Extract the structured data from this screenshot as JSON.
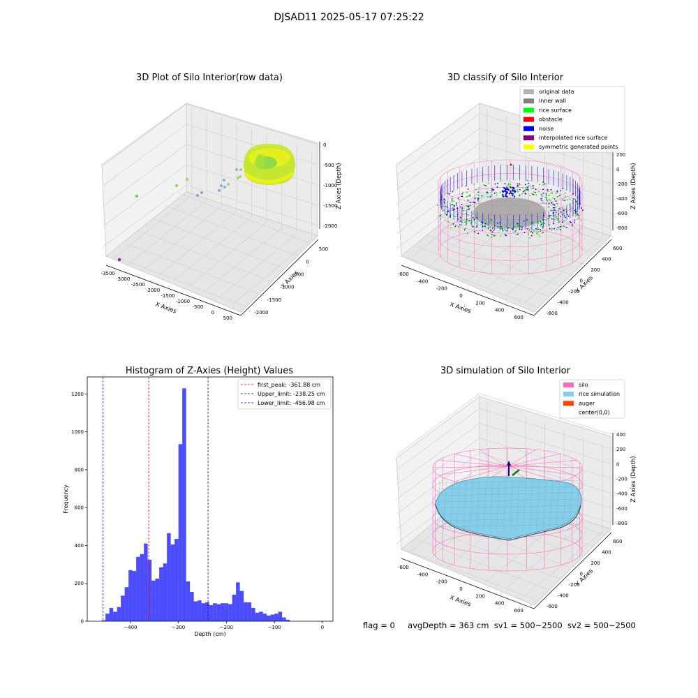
{
  "figure": {
    "suptitle": "DJSAD11 2025-05-17 07:25:22"
  },
  "panels": {
    "raw": {
      "title": "3D Plot of Silo Interior(row data)",
      "xlabel": "X Axies",
      "ylabel": "Y Axies",
      "zlabel": "Z Axies (Depth)",
      "xticks": [
        "-3500",
        "-3000",
        "-2500",
        "-2000",
        "-1500",
        "-1000",
        "-500",
        "0",
        "500"
      ],
      "yticks": [
        "500",
        "0",
        "-500",
        "-1000",
        "-1500",
        "-2000"
      ],
      "zticks": [
        "0",
        "-500",
        "-1000",
        "-1500",
        "-2000"
      ]
    },
    "classify": {
      "title": "3D classify of Silo Interior",
      "xlabel": "X Axies",
      "ylabel": "Y Axies",
      "zlabel": "Z Axies (Depth)",
      "xticks": [
        "-600",
        "-400",
        "-200",
        "0",
        "200",
        "400",
        "600"
      ],
      "yticks": [
        "600",
        "400",
        "200",
        "0",
        "-200",
        "-400",
        "-600"
      ],
      "zticks": [
        "200",
        "0",
        "-200",
        "-400",
        "-600",
        "-800"
      ],
      "legend": [
        {
          "label": "original data",
          "color": "#b3b3b3"
        },
        {
          "label": "inner wall",
          "color": "#808080"
        },
        {
          "label": "rice surface",
          "color": "#00ff00"
        },
        {
          "label": "obstacle",
          "color": "#ff0000"
        },
        {
          "label": "noise",
          "color": "#0000ff"
        },
        {
          "label": "interpolated rice surface",
          "color": "#800080"
        },
        {
          "label": "symmetric generated points",
          "color": "#ffff00"
        }
      ]
    },
    "simulation": {
      "title": "3D simulation of Silo Interior",
      "xlabel": "X Axies",
      "ylabel": "Y Axies",
      "zlabel": "Z Axies (Depth)",
      "xticks": [
        "-600",
        "-400",
        "-200",
        "0",
        "200",
        "400",
        "600"
      ],
      "yticks": [
        "600",
        "400",
        "200",
        "0",
        "-200",
        "-400",
        "-600"
      ],
      "zticks": [
        "400",
        "200",
        "0",
        "-200",
        "-400",
        "-600",
        "-800"
      ],
      "legend": [
        {
          "label": "silo",
          "color": "#ff69b4"
        },
        {
          "label": "rice simulation",
          "color": "#87ceeb"
        },
        {
          "label": "auger",
          "color": "#ff4500"
        },
        {
          "label": "center(0,0)",
          "color": ""
        }
      ]
    }
  },
  "chart_data": {
    "type": "bar",
    "title": "Histogram of Z-Axies (Height) Values",
    "xlabel": "Depth (cm)",
    "ylabel": "Frequency",
    "bar_color": "#0000ff",
    "xlim": [
      -490,
      22
    ],
    "ylim": [
      0,
      1290
    ],
    "xticks": [
      -400,
      -300,
      -200,
      -100,
      0
    ],
    "xtick_labels": [
      "−400",
      "−300",
      "−200",
      "−100",
      "0"
    ],
    "yticks": [
      0,
      200,
      400,
      600,
      800,
      1000,
      1200
    ],
    "bin_start": -460,
    "bin_width": 8,
    "values": [
      5,
      40,
      70,
      50,
      75,
      135,
      180,
      270,
      265,
      340,
      355,
      410,
      325,
      215,
      225,
      285,
      305,
      465,
      405,
      435,
      935,
      1230,
      210,
      155,
      105,
      110,
      95,
      100,
      85,
      95,
      90,
      95,
      95,
      90,
      140,
      205,
      160,
      100,
      100,
      70,
      45,
      50,
      40,
      30,
      35,
      40,
      50,
      20,
      8
    ],
    "vlines": [
      {
        "x": -361.88,
        "color": "#ff0000",
        "label": "first_peak: -361.88 cm"
      },
      {
        "x": -238.25,
        "color": "#0000ff",
        "label": "Upper_limit: -238.25 cm"
      },
      {
        "x": -456.98,
        "color": "#0000ff",
        "label": "Lower_limit: -456.98 cm"
      }
    ],
    "legend_position": "upper right"
  },
  "status": {
    "flag": "flag = 0",
    "avg_depth": "avgDepth = 363 cm",
    "sv1": "sv1 = 500~2500",
    "sv2": "sv2 = 500~2500"
  }
}
